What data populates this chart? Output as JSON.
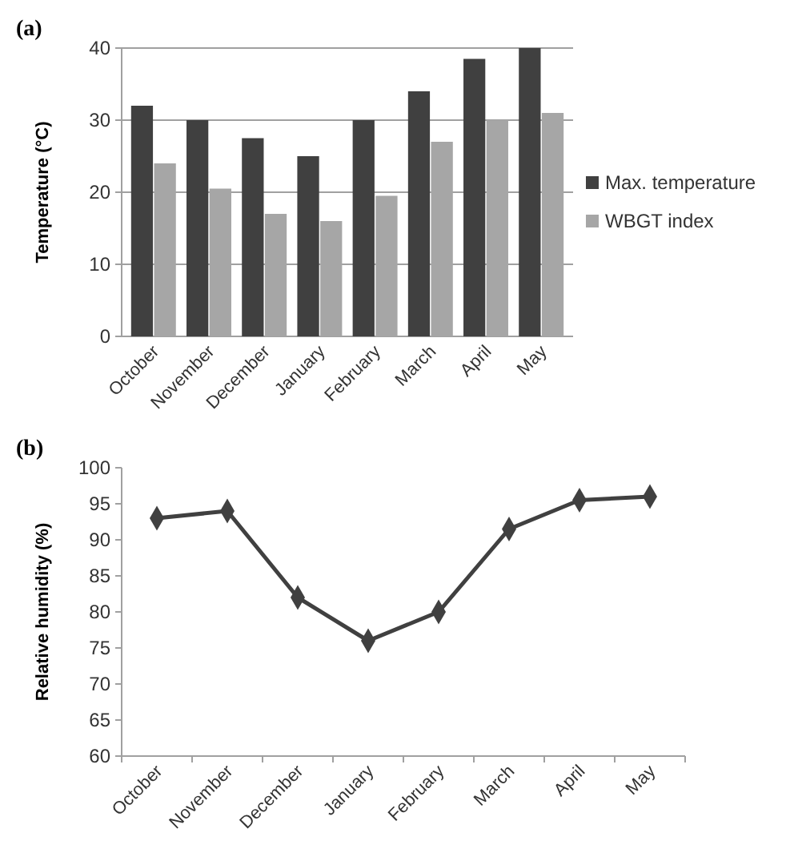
{
  "chart_data": [
    {
      "type": "bar",
      "title": "(a)",
      "ylabel": "Temperature (°C)",
      "categories": [
        "October",
        "November",
        "December",
        "January",
        "February",
        "March",
        "April",
        "May"
      ],
      "series": [
        {
          "name": "Max. temperature",
          "color": "#404040",
          "values": [
            32,
            30,
            27.5,
            25,
            30,
            34,
            38.5,
            40
          ]
        },
        {
          "name": "WBGT index",
          "color": "#a6a6a6",
          "values": [
            24,
            20.5,
            17,
            16,
            19.5,
            27,
            30,
            31
          ]
        }
      ],
      "ylim": [
        0,
        40
      ],
      "yticks": [
        0,
        10,
        20,
        30,
        40
      ],
      "grid": "y",
      "legend": "right"
    },
    {
      "type": "line",
      "title": "(b)",
      "ylabel": "Relative humidity (%)",
      "categories": [
        "October",
        "November",
        "December",
        "January",
        "February",
        "March",
        "April",
        "May"
      ],
      "series": [
        {
          "color": "#404040",
          "values": [
            93,
            94,
            82,
            76,
            80,
            91.5,
            95.5,
            96
          ]
        }
      ],
      "ylim": [
        60,
        100
      ],
      "yticks": [
        60,
        65,
        70,
        75,
        80,
        85,
        90,
        95,
        100
      ],
      "grid": false,
      "marker": "diamond",
      "line_style": "solid"
    }
  ]
}
